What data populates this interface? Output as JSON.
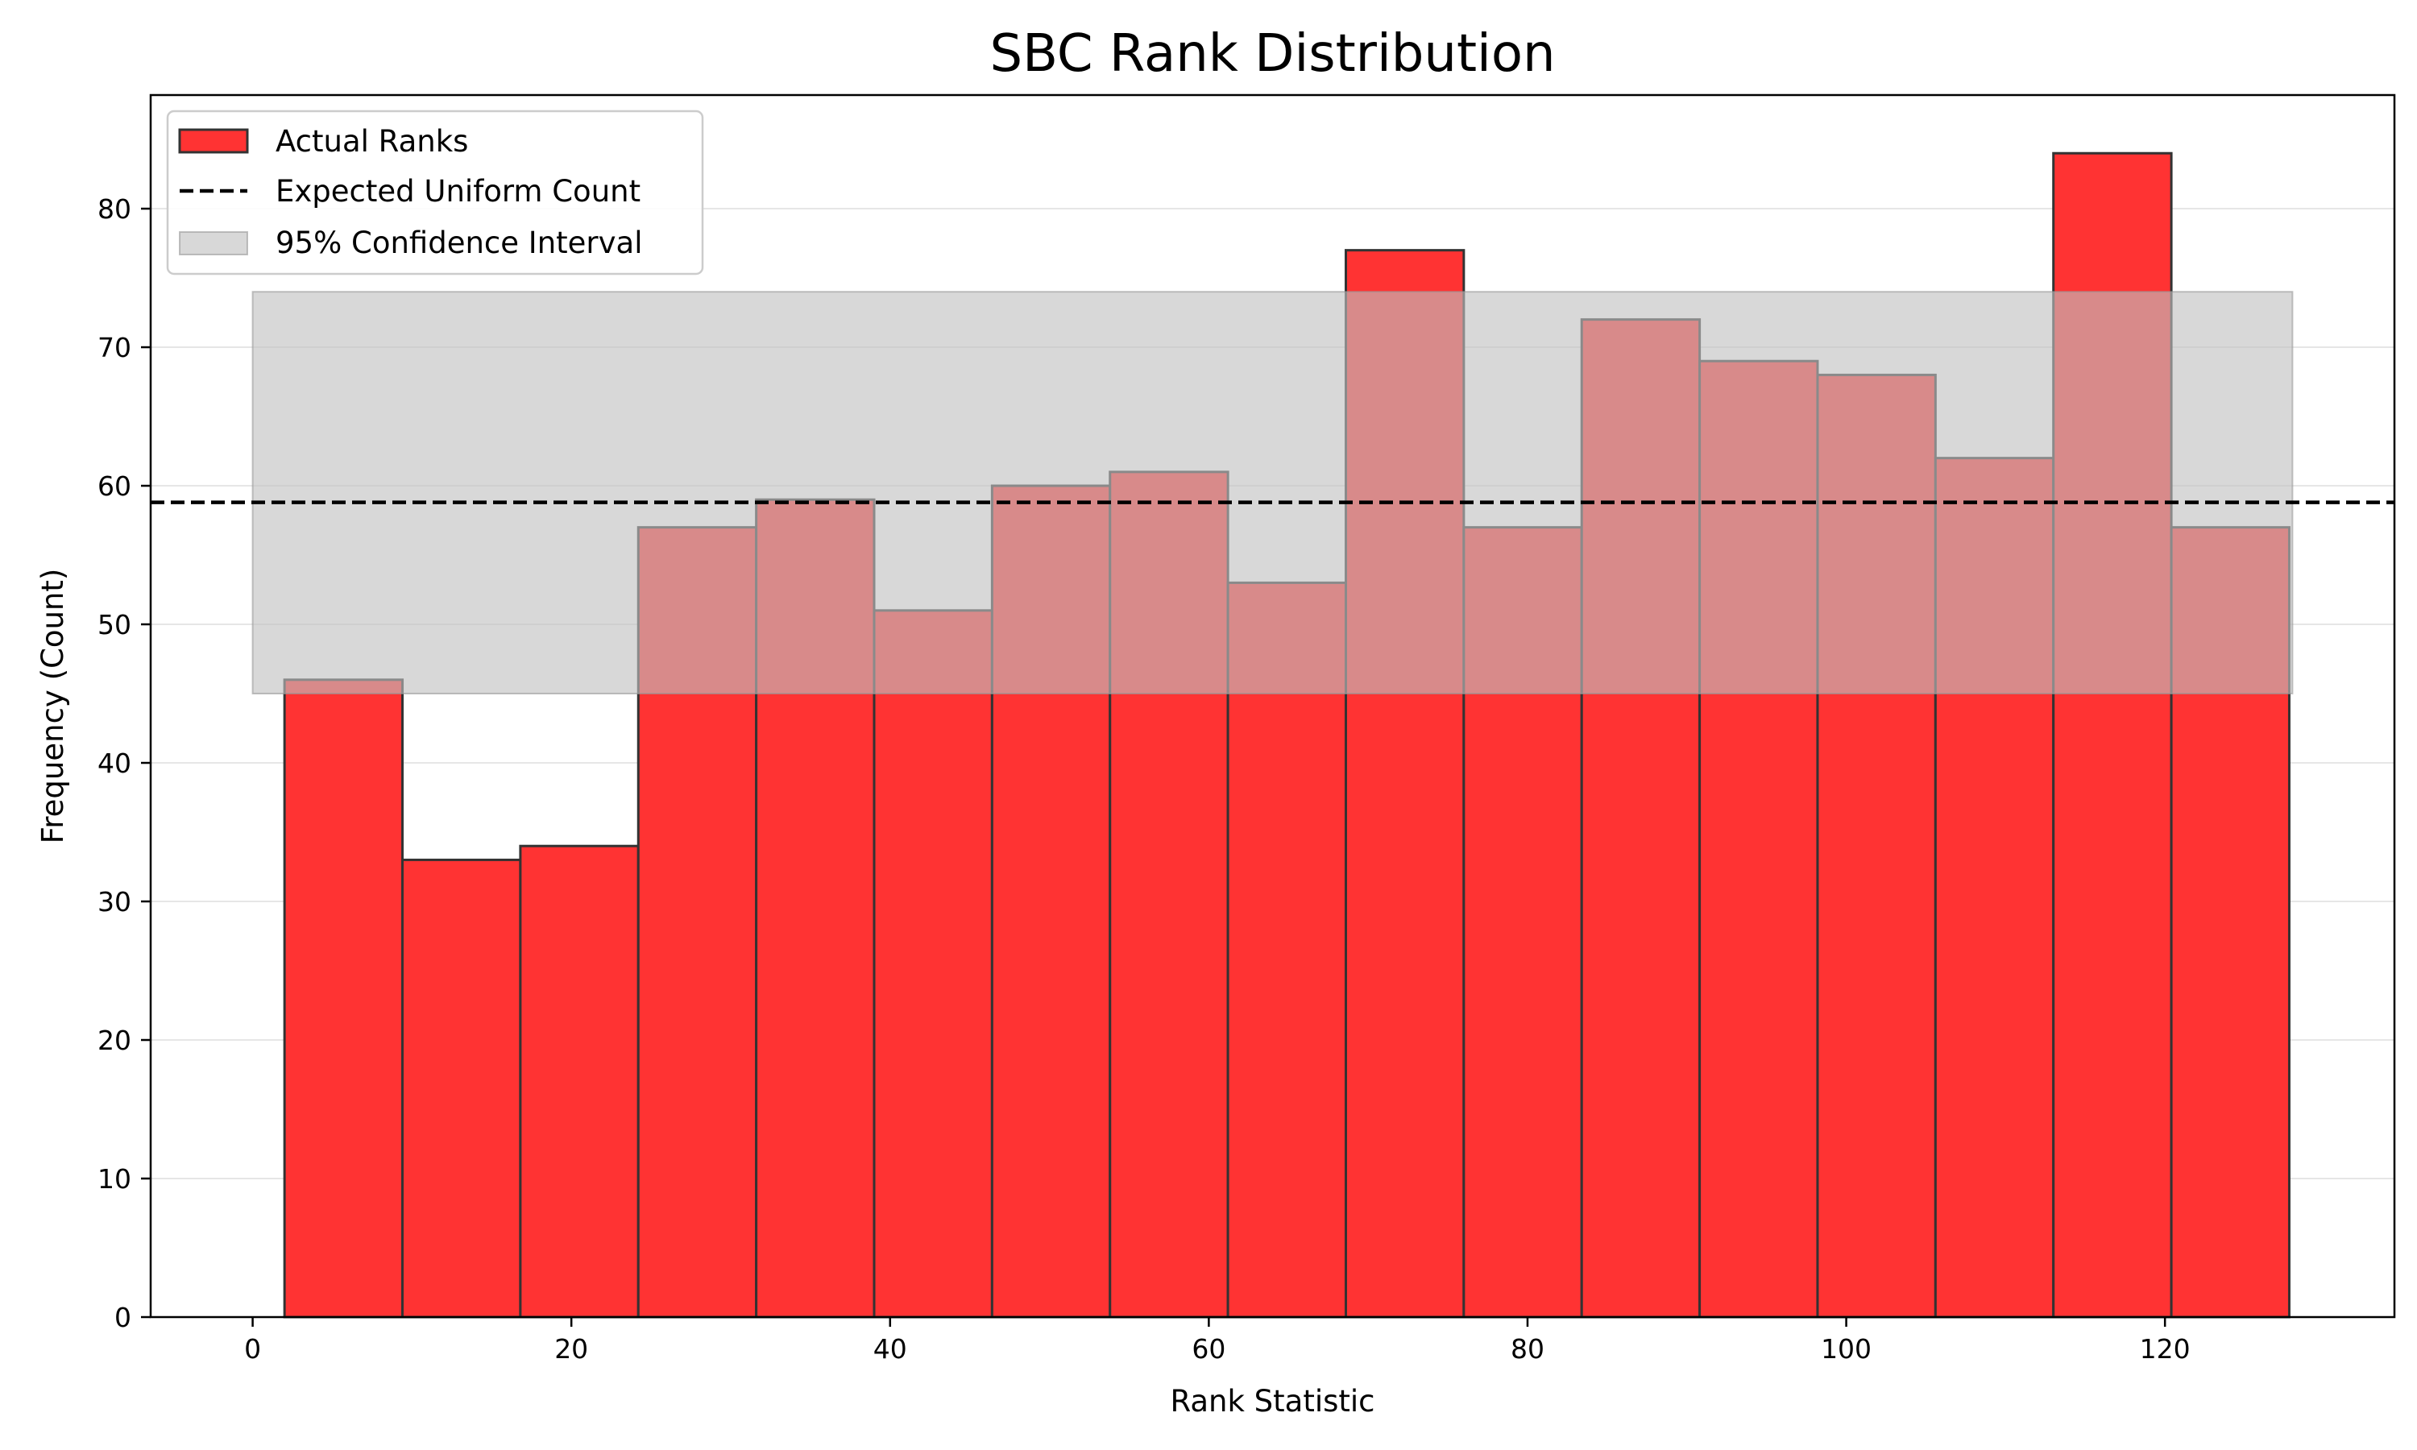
{
  "chart_data": {
    "type": "bar",
    "title": "SBC Rank Distribution",
    "xlabel": "Rank Statistic",
    "ylabel": "Frequency (Count)",
    "xlim": [
      -6.4,
      134.4
    ],
    "ylim": [
      0,
      88.2
    ],
    "xticks": [
      0,
      20,
      40,
      60,
      80,
      100,
      120
    ],
    "yticks": [
      0,
      10,
      20,
      30,
      40,
      50,
      60,
      70,
      80
    ],
    "grid": "horizontal, light",
    "bins": {
      "edges": [
        2,
        9.4,
        16.8,
        24.2,
        31.6,
        39,
        46.4,
        53.8,
        61.2,
        68.6,
        76,
        83.4,
        90.8,
        98.2,
        105.6,
        113,
        120.4,
        127.8
      ],
      "counts": [
        46,
        33,
        34,
        57,
        59,
        51,
        60,
        61,
        53,
        77,
        57,
        72,
        69,
        68,
        62,
        84,
        57
      ]
    },
    "expected_uniform_count": 58.8,
    "confidence_interval": {
      "x": [
        0,
        128
      ],
      "lower": 45,
      "upper": 74
    },
    "legend": {
      "placement": "top-left",
      "entries": [
        "Actual Ranks",
        "Expected Uniform Count",
        "95% Confidence Interval"
      ]
    },
    "colors": {
      "bars": "#ff3333",
      "bar_edge": "#333333",
      "expected_line": "#000000",
      "interval": "#c0c0c0"
    }
  }
}
